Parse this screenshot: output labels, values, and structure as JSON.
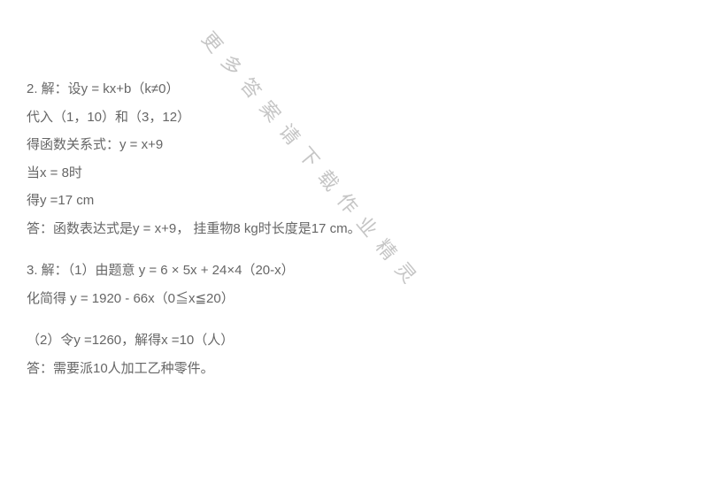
{
  "text_color": "#666666",
  "background_color": "#ffffff",
  "font_size": 15,
  "watermark": {
    "text": "更多答案请下载作业精灵",
    "color": "#bfbfbf",
    "font_size": 22,
    "rotate_deg": 50,
    "letter_spacing": 12
  },
  "lines": [
    {
      "type": "text",
      "text": "2. 解：设y = kx+b（k≠0）"
    },
    {
      "type": "text",
      "text": "代入（1，10）和（3，12）"
    },
    {
      "type": "text",
      "text": "得函数关系式：y = x+9"
    },
    {
      "type": "text",
      "text": "当x = 8时"
    },
    {
      "type": "text",
      "text": "得y =17 cm"
    },
    {
      "type": "text",
      "text": "答：函数表达式是y = x+9， 挂重物8 kg时长度是17 cm。"
    },
    {
      "type": "gap"
    },
    {
      "type": "text",
      "text": "3. 解：（1）由题意 y = 6 × 5x + 24×4（20-x）"
    },
    {
      "type": "text",
      "text": "化简得 y = 1920 - 66x（0≦x≦20）"
    },
    {
      "type": "gap"
    },
    {
      "type": "text",
      "text": "（2）令y =1260，解得x =10（人）"
    },
    {
      "type": "text",
      "text": "答：需要派10人加工乙种零件。"
    }
  ]
}
